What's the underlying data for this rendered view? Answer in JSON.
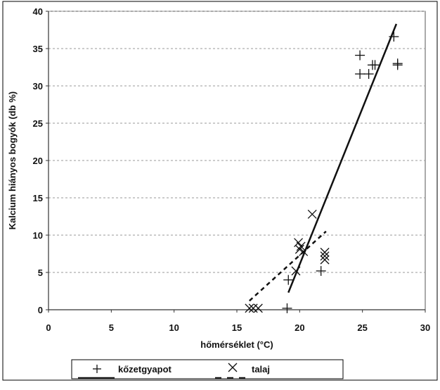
{
  "chart_data": {
    "type": "scatter",
    "title": "",
    "xlabel": "hőmérséklet (°C)",
    "ylabel": "Kalcium hiányos bogyók (db %)",
    "xlim": [
      0,
      30
    ],
    "ylim": [
      0,
      40
    ],
    "x_ticks": [
      0,
      5,
      10,
      15,
      20,
      25,
      30
    ],
    "y_ticks": [
      0,
      5,
      10,
      15,
      20,
      25,
      30,
      35,
      40
    ],
    "grid": "horizontal dashed",
    "legend_position": "bottom",
    "series": [
      {
        "name": "kőzetgyapot",
        "marker": "plus",
        "line_style": "solid",
        "color": "#111111",
        "points": [
          [
            19.0,
            0.2
          ],
          [
            19.1,
            4.0
          ],
          [
            21.7,
            5.2
          ],
          [
            24.8,
            34.1
          ],
          [
            24.8,
            31.6
          ],
          [
            25.5,
            31.6
          ],
          [
            25.8,
            32.8
          ],
          [
            26.0,
            32.8
          ],
          [
            27.5,
            36.6
          ],
          [
            27.8,
            33.0
          ],
          [
            27.8,
            32.8
          ]
        ],
        "trend": [
          [
            19.1,
            2.3
          ],
          [
            27.7,
            38.3
          ]
        ]
      },
      {
        "name": "talaj",
        "marker": "x",
        "line_style": "dashed",
        "color": "#111111",
        "points": [
          [
            16.0,
            0.2
          ],
          [
            16.3,
            0.2
          ],
          [
            16.7,
            0.2
          ],
          [
            19.7,
            5.2
          ],
          [
            19.9,
            9.0
          ],
          [
            20.0,
            8.1
          ],
          [
            20.1,
            8.5
          ],
          [
            20.3,
            7.8
          ],
          [
            21.0,
            12.8
          ],
          [
            22.0,
            7.7
          ],
          [
            22.0,
            7.2
          ],
          [
            22.0,
            6.7
          ]
        ],
        "trend": [
          [
            16.0,
            1.2
          ],
          [
            22.1,
            10.5
          ]
        ]
      }
    ]
  }
}
